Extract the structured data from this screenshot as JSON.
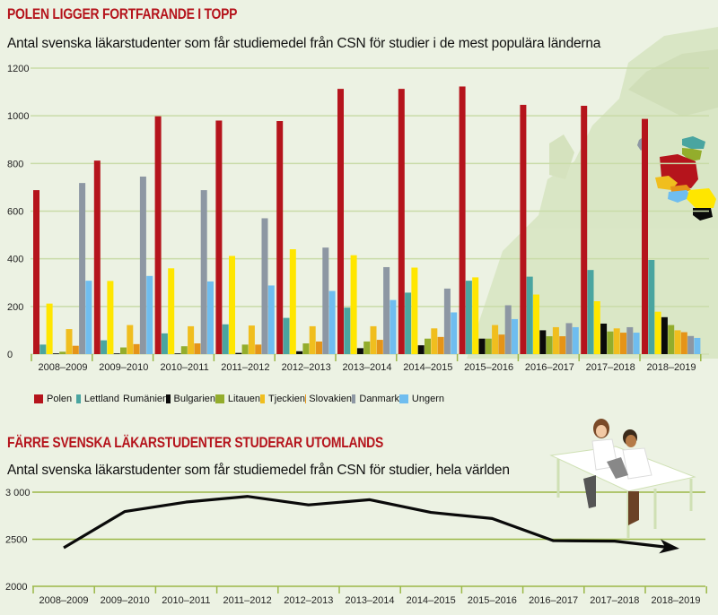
{
  "chart_data": [
    {
      "type": "bar",
      "title": "POLEN LIGGER FORTFARANDE I TOPP",
      "subtitle": "Antal svenska läkarstudenter som får studiemedel från CSN för studier i de mest populära länderna",
      "xlabel": "",
      "ylabel": "",
      "ylim": [
        0,
        1200
      ],
      "yticks": [
        "0",
        "200",
        "400",
        "600",
        "800",
        "1000",
        "1200"
      ],
      "yticks_values": [
        0,
        200,
        400,
        600,
        800,
        1000,
        1200
      ],
      "grid": true,
      "legend_position": "bottom",
      "categories": [
        "2008–2009",
        "2009–2010",
        "2010–2011",
        "2011–2012",
        "2012–2013",
        "2013–2014",
        "2014–2015",
        "2015–2016",
        "2016–2017",
        "2017–2018",
        "2018–2019"
      ],
      "series": [
        {
          "name": "Polen",
          "color": "#b5141c",
          "values": [
            688,
            812,
            998,
            980,
            978,
            1113,
            1113,
            1123,
            1046,
            1042,
            987
          ]
        },
        {
          "name": "Lettland",
          "color": "#4aa5a0",
          "values": [
            40,
            58,
            87,
            125,
            152,
            195,
            258,
            308,
            325,
            353,
            395
          ]
        },
        {
          "name": "Rumänien",
          "color": "#ffe600",
          "values": [
            212,
            307,
            360,
            412,
            440,
            415,
            363,
            322,
            250,
            222,
            178
          ]
        },
        {
          "name": "Bulgarien",
          "color": "#0a0a0a",
          "values": [
            3,
            3,
            3,
            5,
            12,
            25,
            37,
            65,
            100,
            128,
            155
          ]
        },
        {
          "name": "Litauen",
          "color": "#93ad2c",
          "values": [
            10,
            28,
            33,
            40,
            45,
            53,
            65,
            65,
            75,
            95,
            122
          ]
        },
        {
          "name": "Tjeckien",
          "color": "#f0be1e",
          "values": [
            105,
            122,
            117,
            120,
            117,
            117,
            108,
            122,
            113,
            108,
            100
          ]
        },
        {
          "name": "Slovakien",
          "color": "#e59418",
          "values": [
            35,
            42,
            45,
            40,
            53,
            60,
            72,
            82,
            75,
            90,
            92
          ]
        },
        {
          "name": "Danmark",
          "color": "#8d97a3",
          "values": [
            718,
            745,
            688,
            570,
            447,
            365,
            275,
            205,
            130,
            113,
            76
          ]
        },
        {
          "name": "Ungern",
          "color": "#6fbdef",
          "values": [
            308,
            328,
            305,
            288,
            265,
            227,
            175,
            147,
            113,
            90,
            68
          ]
        }
      ]
    },
    {
      "type": "line",
      "title": "FÄRRE SVENSKA LÄKARSTUDENTER STUDERAR UTOMLANDS",
      "subtitle": "Antal svenska läkarstudenter som får studiemedel från CSN för studier, hela världen",
      "xlabel": "",
      "ylabel": "",
      "ylim": [
        2000,
        3000
      ],
      "yticks": [
        "2000",
        "2500",
        "3 000"
      ],
      "yticks_values": [
        2000,
        2500,
        3000
      ],
      "grid": true,
      "categories": [
        "2008–2009",
        "2009–2010",
        "2010–2011",
        "2011–2012",
        "2012–2013",
        "2013–2014",
        "2014–2015",
        "2015–2016",
        "2016–2017",
        "2017–2018",
        "2018–2019"
      ],
      "series": [
        {
          "name": "Hela världen",
          "color": "#0a0a0a",
          "values": [
            2410,
            2795,
            2895,
            2955,
            2865,
            2920,
            2785,
            2720,
            2485,
            2480,
            2405
          ]
        }
      ],
      "end_marker": "arrow"
    }
  ]
}
